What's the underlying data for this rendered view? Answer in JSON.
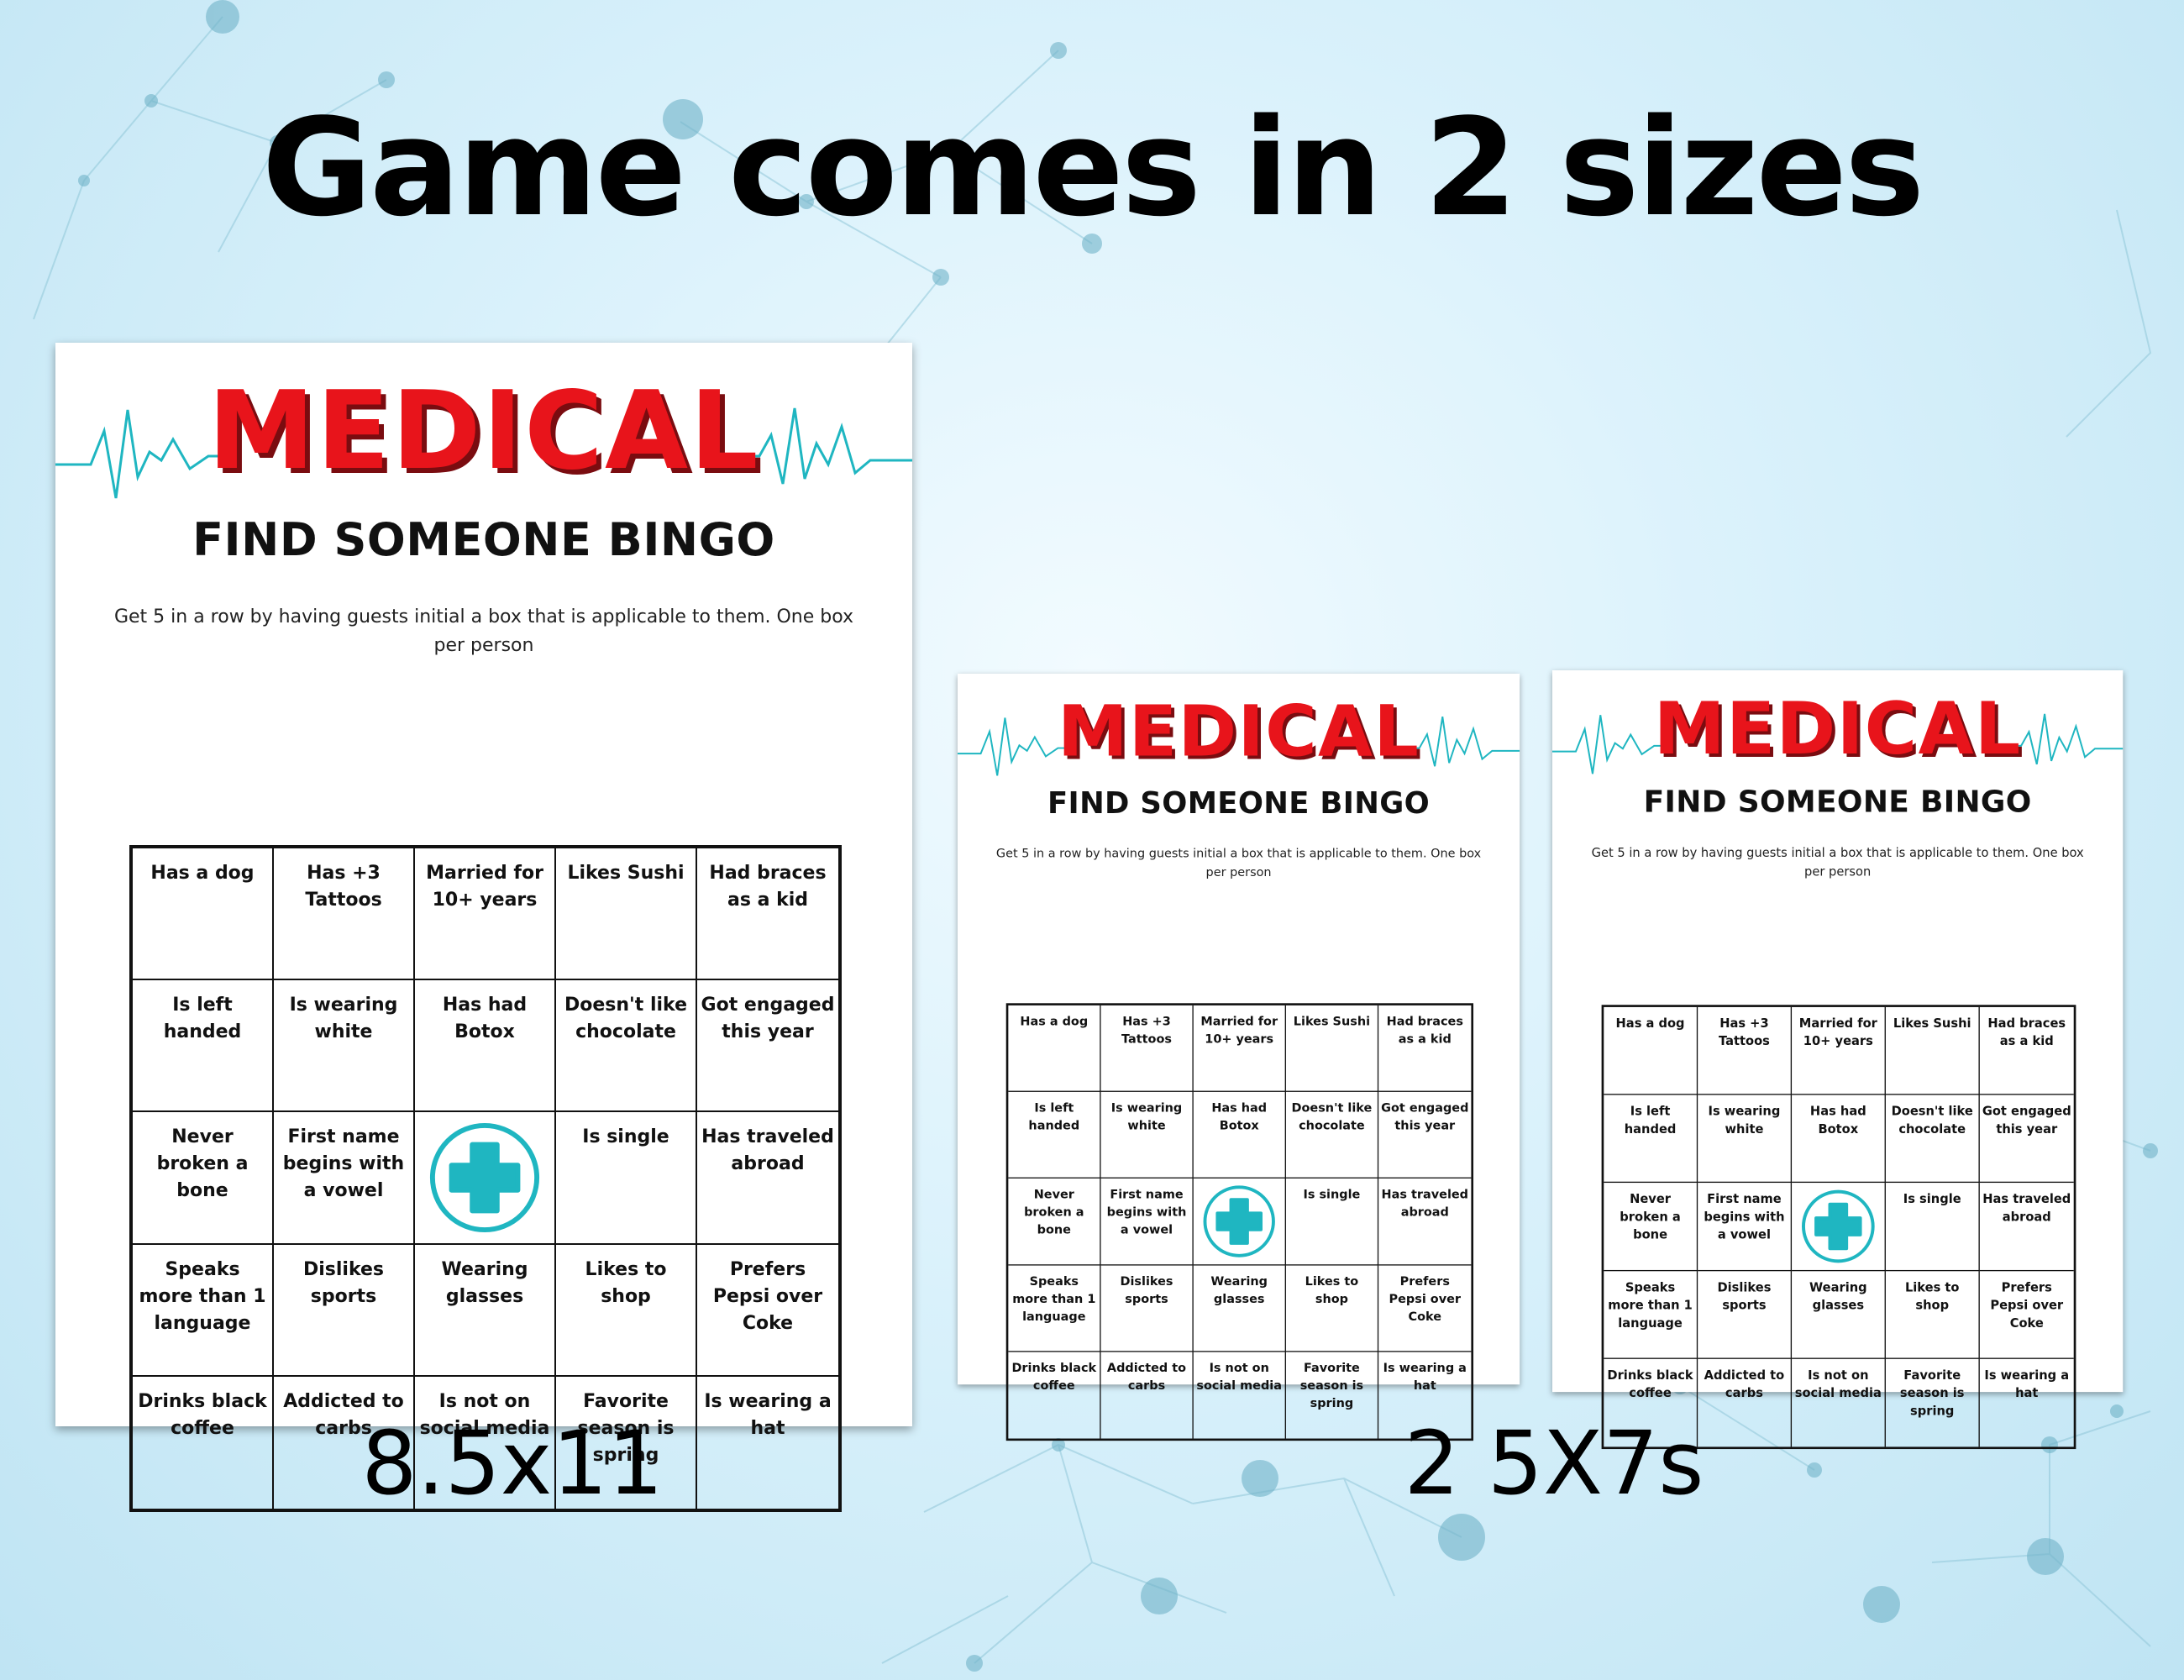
{
  "colors": {
    "brand_red": "#e8141b",
    "ekg_teal": "#1fb6c1",
    "background": "#d9f1fb"
  },
  "headline": "Game comes in 2 sizes",
  "size_labels": [
    "8.5x11",
    "2 5X7s"
  ],
  "card": {
    "brand": "MEDICAL",
    "subtitle": "FIND SOMEONE BINGO",
    "instructions": "Get 5 in a row by having guests initial a box that is applicable to them.  One box per person",
    "free_space_icon": "medical-cross-icon",
    "cells": [
      "Has a dog",
      "Has +3 Tattoos",
      "Married for 10+ years",
      "Likes Sushi",
      "Had braces as a kid",
      "Is left handed",
      "Is wearing white",
      "Has had Botox",
      "Doesn't like chocolate",
      "Got engaged this year",
      "Never broken a bone",
      "First name begins with a vowel",
      "",
      "Is single",
      "Has traveled abroad",
      "Speaks more than 1 language",
      "Dislikes sports",
      "Wearing glasses",
      "Likes to shop",
      "Prefers Pepsi over Coke",
      "Drinks black coffee",
      "Addicted to carbs",
      "Is not on social media",
      "Favorite season is spring",
      "Is wearing a hat"
    ]
  }
}
